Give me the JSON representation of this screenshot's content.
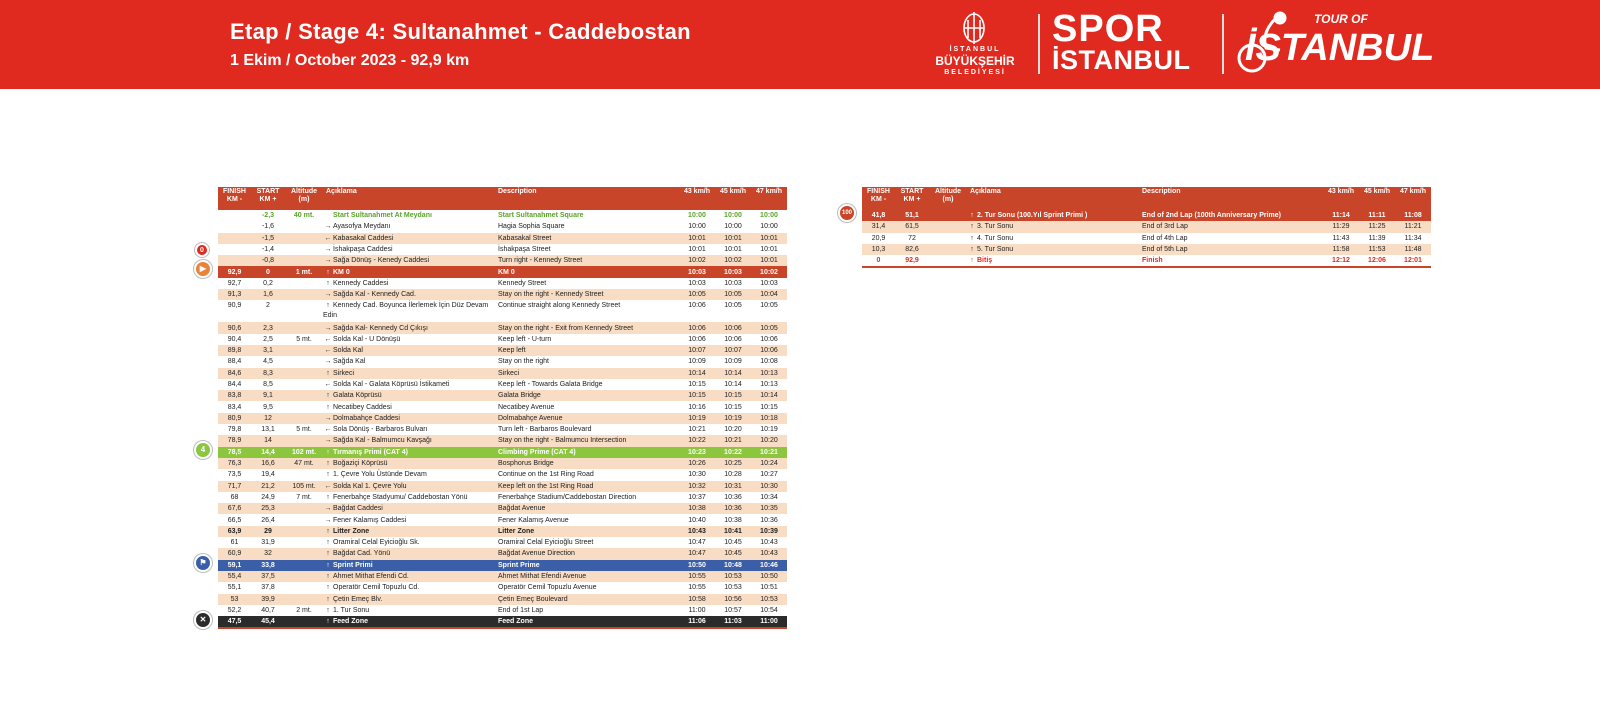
{
  "header": {
    "title": "Etap / Stage 4: Sultanahmet - Caddebostan",
    "subtitle": "1 Ekim / October 2023 - 92,9 km",
    "ibb_line1": "İSTANBUL",
    "ibb_line2": "BÜYÜKŞEHİR",
    "ibb_line3": "BELEDİYESİ",
    "spor": "SPOR",
    "istanbul": "İSTANBUL",
    "tour_of": "TOUR OF",
    "tour_istanbul": "İSTANBUL"
  },
  "columns": {
    "finish": "FINISH KM -",
    "start": "START KM +",
    "altitude": "Altitude (m)",
    "aciklama": "Açıklama",
    "description": "Description",
    "s43": "43 km/h",
    "s45": "45 km/h",
    "s47": "47 km/h"
  },
  "left_rows": [
    {
      "finish": "",
      "start": "-2,3",
      "alt": "40 mt.",
      "arrow": "",
      "tr": "Start Sultanahmet At Meydanı",
      "en": "Start Sultanahmet Square",
      "t43": "10:00",
      "t45": "10:00",
      "t47": "10:00",
      "style": "start"
    },
    {
      "finish": "",
      "start": "-1,6",
      "alt": "",
      "arrow": "→",
      "tr": "Ayasofya Meydanı",
      "en": "Hagia Sophia Square",
      "t43": "10:00",
      "t45": "10:00",
      "t47": "10:00",
      "style": "white"
    },
    {
      "finish": "",
      "start": "-1,5",
      "alt": "",
      "arrow": "←",
      "tr": "Kabasakal Caddesi",
      "en": "Kabasakal Street",
      "t43": "10:01",
      "t45": "10:01",
      "t47": "10:01",
      "style": "peach"
    },
    {
      "finish": "",
      "start": "-1,4",
      "alt": "",
      "arrow": "→",
      "tr": "İshakpaşa Caddesi",
      "en": "İshakpaşa Street",
      "t43": "10:01",
      "t45": "10:01",
      "t47": "10:01",
      "style": "white"
    },
    {
      "finish": "",
      "start": "-0,8",
      "alt": "",
      "arrow": "→",
      "tr": "Sağa Dönüş - Kenedy Caddesi",
      "en": "Turn right - Kennedy Street",
      "t43": "10:02",
      "t45": "10:02",
      "t47": "10:01",
      "style": "peach"
    },
    {
      "finish": "92,9",
      "start": "0",
      "alt": "1 mt.",
      "arrow": "↑",
      "tr": "KM 0",
      "en": "KM 0",
      "t43": "10:03",
      "t45": "10:03",
      "t47": "10:02",
      "style": "km0"
    },
    {
      "finish": "92,7",
      "start": "0,2",
      "alt": "",
      "arrow": "↑",
      "tr": "Kennedy Caddesi",
      "en": "Kennedy Street",
      "t43": "10:03",
      "t45": "10:03",
      "t47": "10:03",
      "style": "white"
    },
    {
      "finish": "91,3",
      "start": "1,6",
      "alt": "",
      "arrow": "→",
      "tr": "Sağda Kal - Kennedy Cad.",
      "en": "Stay on the right - Kennedy Street",
      "t43": "10:05",
      "t45": "10:05",
      "t47": "10:04",
      "style": "peach"
    },
    {
      "finish": "90,9",
      "start": "2",
      "alt": "",
      "arrow": "↑",
      "tr": "Kennedy Cad. Boyunca İlerlemek İçin Düz Devam Edin",
      "en": "Continue straight along Kennedy Street",
      "t43": "10:06",
      "t45": "10:05",
      "t47": "10:05",
      "style": "white",
      "tall": true
    },
    {
      "finish": "90,6",
      "start": "2,3",
      "alt": "",
      "arrow": "→",
      "tr": "Sağda Kal- Kennedy Cd Çıkışı",
      "en": "Stay on the right - Exit from Kennedy Street",
      "t43": "10:06",
      "t45": "10:06",
      "t47": "10:05",
      "style": "peach"
    },
    {
      "finish": "90,4",
      "start": "2,5",
      "alt": "5 mt.",
      "arrow": "←",
      "tr": "Solda Kal - U Dönüşü",
      "en": "Keep left - U-turn",
      "t43": "10:06",
      "t45": "10:06",
      "t47": "10:06",
      "style": "white"
    },
    {
      "finish": "89,8",
      "start": "3,1",
      "alt": "",
      "arrow": "←",
      "tr": "Solda Kal",
      "en": "Keep left",
      "t43": "10:07",
      "t45": "10:07",
      "t47": "10:06",
      "style": "peach"
    },
    {
      "finish": "88,4",
      "start": "4,5",
      "alt": "",
      "arrow": "→",
      "tr": "Sağda Kal",
      "en": "Stay on the right",
      "t43": "10:09",
      "t45": "10:09",
      "t47": "10:08",
      "style": "white"
    },
    {
      "finish": "84,6",
      "start": "8,3",
      "alt": "",
      "arrow": "↑",
      "tr": "Sirkeci",
      "en": "Sirkeci",
      "t43": "10:14",
      "t45": "10:14",
      "t47": "10:13",
      "style": "peach"
    },
    {
      "finish": "84,4",
      "start": "8,5",
      "alt": "",
      "arrow": "←",
      "tr": "Solda Kal - Galata Köprüsü İstikameti",
      "en": "Keep left - Towards Galata Bridge",
      "t43": "10:15",
      "t45": "10:14",
      "t47": "10:13",
      "style": "white"
    },
    {
      "finish": "83,8",
      "start": "9,1",
      "alt": "",
      "arrow": "↑",
      "tr": "Galata Köprüsü",
      "en": "Galata Bridge",
      "t43": "10:15",
      "t45": "10:15",
      "t47": "10:14",
      "style": "peach"
    },
    {
      "finish": "83,4",
      "start": "9,5",
      "alt": "",
      "arrow": "↑",
      "tr": "Necatibey Caddesi",
      "en": "Necatibey Avenue",
      "t43": "10:16",
      "t45": "10:15",
      "t47": "10:15",
      "style": "white"
    },
    {
      "finish": "80,9",
      "start": "12",
      "alt": "",
      "arrow": "→",
      "tr": "Dolmabahçe Caddesi",
      "en": "Dolmabahçe Avenue",
      "t43": "10:19",
      "t45": "10:19",
      "t47": "10:18",
      "style": "peach"
    },
    {
      "finish": "79,8",
      "start": "13,1",
      "alt": "5 mt.",
      "arrow": "←",
      "tr": "Sola Dönüş - Barbaros Bulvarı",
      "en": "Turn left - Barbaros Boulevard",
      "t43": "10:21",
      "t45": "10:20",
      "t47": "10:19",
      "style": "white"
    },
    {
      "finish": "78,9",
      "start": "14",
      "alt": "",
      "arrow": "→",
      "tr": "Sağda Kal - Balmumcu Kavşağı",
      "en": "Stay on the right - Balmumcu Intersection",
      "t43": "10:22",
      "t45": "10:21",
      "t47": "10:20",
      "style": "peach"
    },
    {
      "finish": "78,5",
      "start": "14,4",
      "alt": "102 mt.",
      "arrow": "↑",
      "tr": "Tırmanış Primi (CAT 4)",
      "en": "Climbing Prime (CAT 4)",
      "t43": "10:23",
      "t45": "10:22",
      "t47": "10:21",
      "style": "climb"
    },
    {
      "finish": "76,3",
      "start": "16,6",
      "alt": "47 mt.",
      "arrow": "↑",
      "tr": "Boğaziçi Köprüsü",
      "en": "Bosphorus Bridge",
      "t43": "10:26",
      "t45": "10:25",
      "t47": "10:24",
      "style": "peach"
    },
    {
      "finish": "73,5",
      "start": "19,4",
      "alt": "",
      "arrow": "↑",
      "tr": "1. Çevre Yolu Üstünde Devam",
      "en": "Continue on the 1st Ring Road",
      "t43": "10:30",
      "t45": "10:28",
      "t47": "10:27",
      "style": "white"
    },
    {
      "finish": "71,7",
      "start": "21,2",
      "alt": "105 mt.",
      "arrow": "←",
      "tr": "Solda Kal 1. Çevre Yolu",
      "en": "Keep left on the 1st Ring Road",
      "t43": "10:32",
      "t45": "10:31",
      "t47": "10:30",
      "style": "peach"
    },
    {
      "finish": "68",
      "start": "24,9",
      "alt": "7 mt.",
      "arrow": "↑",
      "tr": "Fenerbahçe Stadyumu/ Caddebostan Yönü",
      "en": " Fenerbahçe Stadium/Caddebostan Direction",
      "t43": "10:37",
      "t45": "10:36",
      "t47": "10:34",
      "style": "white"
    },
    {
      "finish": "67,6",
      "start": "25,3",
      "alt": "",
      "arrow": "→",
      "tr": "Bağdat Caddesi",
      "en": "Bağdat Avenue",
      "t43": "10:38",
      "t45": "10:36",
      "t47": "10:35",
      "style": "peach"
    },
    {
      "finish": "66,5",
      "start": "26,4",
      "alt": "",
      "arrow": "→",
      "tr": "Fener Kalamış Caddesi",
      "en": "Fener Kalamış Avenue",
      "t43": "10:40",
      "t45": "10:38",
      "t47": "10:36",
      "style": "white"
    },
    {
      "finish": "63,9",
      "start": "29",
      "alt": "",
      "arrow": "↑",
      "tr": "Litter Zone",
      "en": "Litter Zone",
      "t43": "10:43",
      "t45": "10:41",
      "t47": "10:39",
      "style": "peach-bold"
    },
    {
      "finish": "61",
      "start": "31,9",
      "alt": "",
      "arrow": "↑",
      "tr": "Oramiral Celal Eyicioğlu Sk.",
      "en": "Oramiral Celal Eyicioğlu Street",
      "t43": "10:47",
      "t45": "10:45",
      "t47": "10:43",
      "style": "white"
    },
    {
      "finish": "60,9",
      "start": "32",
      "alt": "",
      "arrow": "↑",
      "tr": "Bağdat Cad. Yönü",
      "en": "Bağdat Avenue Direction",
      "t43": "10:47",
      "t45": "10:45",
      "t47": "10:43",
      "style": "peach"
    },
    {
      "finish": "59,1",
      "start": "33,8",
      "alt": "",
      "arrow": "↑",
      "tr": "Sprint Primi",
      "en": "Sprint Prime",
      "t43": "10:50",
      "t45": "10:48",
      "t47": "10:46",
      "style": "sprint"
    },
    {
      "finish": "55,4",
      "start": "37,5",
      "alt": "",
      "arrow": "↑",
      "tr": "Ahmet Mithat Efendi Cd.",
      "en": "Ahmet Mithat Efendi Avenue",
      "t43": "10:55",
      "t45": "10:53",
      "t47": "10:50",
      "style": "peach"
    },
    {
      "finish": "55,1",
      "start": "37,8",
      "alt": "",
      "arrow": "↑",
      "tr": "Operatör Cemil Topuzlu Cd.",
      "en": "Operatör Cemil Topuzlu Avenue",
      "t43": "10:55",
      "t45": "10:53",
      "t47": "10:51",
      "style": "white"
    },
    {
      "finish": "53",
      "start": "39,9",
      "alt": "",
      "arrow": "↑",
      "tr": "Çetin Emeç Blv.",
      "en": "Çetin Emeç Boulevard",
      "t43": "10:58",
      "t45": "10:56",
      "t47": "10:53",
      "style": "peach"
    },
    {
      "finish": "52,2",
      "start": "40,7",
      "alt": "2 mt.",
      "arrow": "↑",
      "tr": "1. Tur Sonu",
      "en": "End of 1st Lap",
      "t43": "11:00",
      "t45": "10:57",
      "t47": "10:54",
      "style": "white"
    },
    {
      "finish": "47,5",
      "start": "45,4",
      "alt": "",
      "arrow": "↑",
      "tr": "Feed Zone",
      "en": "Feed Zone",
      "t43": "11:06",
      "t45": "11:03",
      "t47": "11:00",
      "style": "feed"
    }
  ],
  "right_rows": [
    {
      "finish": "41,8",
      "start": "51,1",
      "alt": "",
      "arrow": "↑",
      "tr": "2. Tur Sonu (100.Yıl Sprint Primi )",
      "en": "End of 2nd Lap (100th Anniversary Prime)",
      "t43": "11:14",
      "t45": "11:11",
      "t47": "11:08",
      "style": "prime"
    },
    {
      "finish": "31,4",
      "start": "61,5",
      "alt": "",
      "arrow": "↑",
      "tr": "3. Tur Sonu",
      "en": "End of 3rd Lap",
      "t43": "11:29",
      "t45": "11:25",
      "t47": "11:21",
      "style": "peach"
    },
    {
      "finish": "20,9",
      "start": "72",
      "alt": "",
      "arrow": "↑",
      "tr": "4. Tur Sonu",
      "en": "End of 4th Lap",
      "t43": "11:43",
      "t45": "11:39",
      "t47": "11:34",
      "style": "white"
    },
    {
      "finish": "10,3",
      "start": "82,6",
      "alt": "",
      "arrow": "↑",
      "tr": "5. Tur Sonu",
      "en": "End of 5th Lap",
      "t43": "11:58",
      "t45": "11:53",
      "t47": "11:48",
      "style": "peach"
    },
    {
      "finish": "0",
      "start": "92,9",
      "alt": "",
      "arrow": "↑",
      "tr": "Bitiş",
      "en": "Finish",
      "t43": "12:12",
      "t45": "12:06",
      "t47": "12:01",
      "style": "finish"
    }
  ],
  "markers": {
    "km0_label": "0",
    "climb_label": "4",
    "prime_label": "100"
  },
  "colors": {
    "brand_red": "#e02a20",
    "header_row": "#c9452a",
    "peach": "#f8dcc3",
    "climb_green": "#8cc63f",
    "sprint_blue": "#3a5fa8",
    "feed_dark": "#2b2b2b",
    "start_green": "#5aa32c"
  }
}
